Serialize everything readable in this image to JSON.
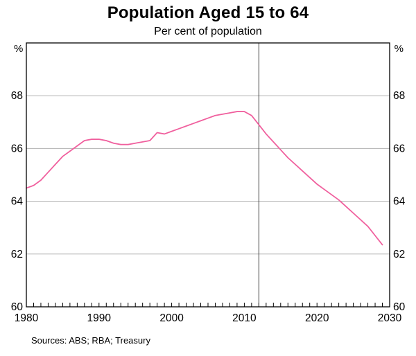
{
  "header": {
    "title": "Population Aged 15 to 64",
    "subtitle": "Per cent of population"
  },
  "footer": {
    "sources": "Sources: ABS; RBA; Treasury"
  },
  "chart_data": {
    "type": "line",
    "title": "Population Aged 15 to 64",
    "subtitle": "Per cent of population",
    "unit": "%",
    "xlabel": "",
    "ylabel": "%",
    "xlim": [
      1980,
      2030
    ],
    "ylim": [
      60,
      70
    ],
    "xticks": [
      1980,
      1990,
      2000,
      2010,
      2020,
      2030
    ],
    "yticks": [
      60,
      62,
      64,
      66,
      68
    ],
    "gridlines": [
      62,
      64,
      66,
      68
    ],
    "minor_xtick_interval": 1,
    "grid": "horizontal",
    "legend_position": "none",
    "vline_x": 2012,
    "colors": {
      "grid": "#b0b0b0",
      "vline": "#3c3c3c",
      "frame": "#000000"
    },
    "x": [
      1980,
      1981,
      1982,
      1983,
      1984,
      1985,
      1986,
      1987,
      1988,
      1989,
      1990,
      1991,
      1992,
      1993,
      1994,
      1995,
      1996,
      1997,
      1998,
      1999,
      2000,
      2001,
      2002,
      2003,
      2004,
      2005,
      2006,
      2007,
      2008,
      2009,
      2010,
      2011,
      2012,
      2013,
      2014,
      2015,
      2016,
      2017,
      2018,
      2019,
      2020,
      2021,
      2022,
      2023,
      2024,
      2025,
      2026,
      2027,
      2028,
      2029
    ],
    "series": [
      {
        "name": "Population aged 15 to 64 (per cent of population)",
        "color": "#f0609e",
        "values": [
          64.5,
          64.6,
          64.8,
          65.1,
          65.4,
          65.7,
          65.9,
          66.1,
          66.3,
          66.35,
          66.35,
          66.3,
          66.2,
          66.15,
          66.15,
          66.2,
          66.25,
          66.3,
          66.6,
          66.55,
          66.65,
          66.75,
          66.85,
          66.95,
          67.05,
          67.15,
          67.25,
          67.3,
          67.35,
          67.4,
          67.4,
          67.25,
          66.9,
          66.55,
          66.25,
          65.95,
          65.65,
          65.4,
          65.15,
          64.9,
          64.65,
          64.45,
          64.25,
          64.05,
          63.8,
          63.55,
          63.3,
          63.05,
          62.7,
          62.35
        ]
      }
    ]
  }
}
